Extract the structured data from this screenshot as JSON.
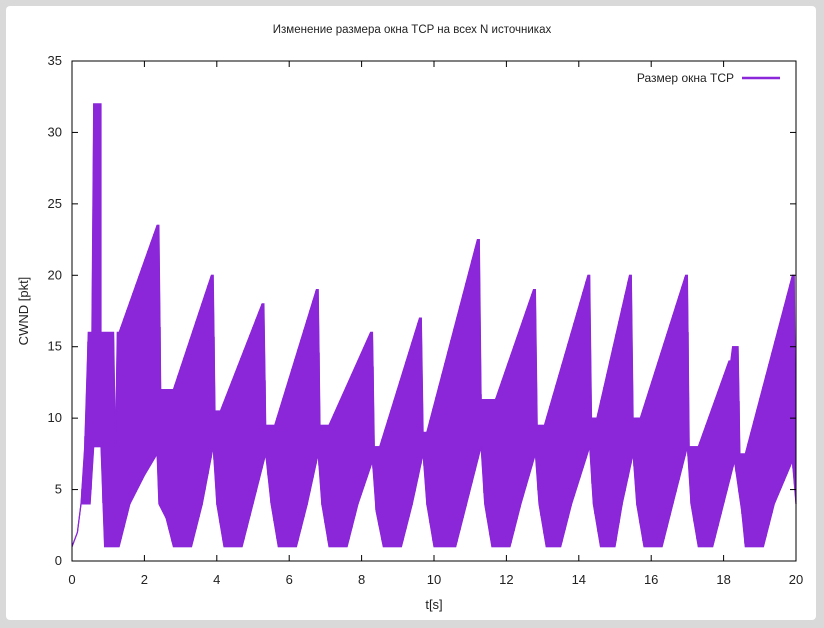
{
  "chart_data": {
    "type": "line",
    "title": "Изменение размера окна TCP на всех N источниках",
    "xlabel": "t[s]",
    "ylabel": "CWND [pkt]",
    "xlim": [
      0,
      20
    ],
    "ylim": [
      0,
      35
    ],
    "xticks": [
      0,
      2,
      4,
      6,
      8,
      10,
      12,
      14,
      16,
      18,
      20
    ],
    "yticks": [
      0,
      5,
      10,
      15,
      20,
      25,
      30,
      35
    ],
    "grid": false,
    "legend_position": "top-right",
    "color": "#8b26d9",
    "series": [
      {
        "name": "Размер окна TCP",
        "style": "filled oscillating envelope (dense sawtooth between lower and upper traces)",
        "upper": [
          [
            0,
            1
          ],
          [
            0.15,
            2
          ],
          [
            0.25,
            4
          ],
          [
            0.35,
            8
          ],
          [
            0.45,
            16
          ],
          [
            0.55,
            16
          ],
          [
            0.6,
            32
          ],
          [
            0.8,
            32
          ],
          [
            0.8,
            16
          ],
          [
            1.15,
            16
          ],
          [
            1.2,
            8
          ],
          [
            1.25,
            16
          ],
          [
            1.3,
            16
          ],
          [
            2.35,
            23.5
          ],
          [
            2.4,
            23.5
          ],
          [
            2.45,
            12
          ],
          [
            2.8,
            12
          ],
          [
            3.85,
            20
          ],
          [
            3.9,
            20
          ],
          [
            3.95,
            10.5
          ],
          [
            4.1,
            10.5
          ],
          [
            5.25,
            18
          ],
          [
            5.3,
            18
          ],
          [
            5.35,
            9.5
          ],
          [
            5.6,
            9.5
          ],
          [
            6.75,
            19
          ],
          [
            6.8,
            19
          ],
          [
            6.85,
            9.5
          ],
          [
            7.1,
            9.5
          ],
          [
            8.25,
            16
          ],
          [
            8.3,
            16
          ],
          [
            8.35,
            8
          ],
          [
            8.5,
            8
          ],
          [
            9.6,
            17
          ],
          [
            9.65,
            17
          ],
          [
            9.7,
            9
          ],
          [
            9.8,
            9
          ],
          [
            11.2,
            22.5
          ],
          [
            11.25,
            22.5
          ],
          [
            11.3,
            11.3
          ],
          [
            11.7,
            11.3
          ],
          [
            12.75,
            19
          ],
          [
            12.8,
            19
          ],
          [
            12.85,
            9.5
          ],
          [
            13.05,
            9.5
          ],
          [
            14.25,
            20
          ],
          [
            14.3,
            20
          ],
          [
            14.35,
            10
          ],
          [
            14.5,
            10
          ],
          [
            15.4,
            20
          ],
          [
            15.45,
            20
          ],
          [
            15.5,
            10
          ],
          [
            15.7,
            10
          ],
          [
            16.95,
            20
          ],
          [
            17.0,
            20
          ],
          [
            17.05,
            8
          ],
          [
            17.3,
            8
          ],
          [
            18.15,
            14
          ],
          [
            18.2,
            14
          ],
          [
            18.25,
            15
          ],
          [
            18.4,
            15
          ],
          [
            18.45,
            7.5
          ],
          [
            18.6,
            7.5
          ],
          [
            19.9,
            20
          ],
          [
            19.95,
            20
          ],
          [
            20,
            4
          ]
        ],
        "lower": [
          [
            0,
            1
          ],
          [
            0.15,
            2
          ],
          [
            0.25,
            4
          ],
          [
            0.35,
            4
          ],
          [
            0.5,
            4
          ],
          [
            0.6,
            8
          ],
          [
            0.8,
            8
          ],
          [
            0.9,
            1
          ],
          [
            1.3,
            1
          ],
          [
            1.6,
            4
          ],
          [
            2.0,
            6
          ],
          [
            2.35,
            7.5
          ],
          [
            2.4,
            4
          ],
          [
            2.6,
            3
          ],
          [
            2.8,
            1
          ],
          [
            3.3,
            1
          ],
          [
            3.6,
            4
          ],
          [
            3.9,
            8
          ],
          [
            4.0,
            4
          ],
          [
            4.2,
            1
          ],
          [
            4.7,
            1
          ],
          [
            5.0,
            4
          ],
          [
            5.35,
            7.5
          ],
          [
            5.5,
            4
          ],
          [
            5.7,
            1
          ],
          [
            6.2,
            1
          ],
          [
            6.5,
            4
          ],
          [
            6.8,
            7.5
          ],
          [
            6.9,
            4
          ],
          [
            7.1,
            1
          ],
          [
            7.6,
            1
          ],
          [
            7.9,
            4
          ],
          [
            8.3,
            7
          ],
          [
            8.4,
            3.5
          ],
          [
            8.6,
            1
          ],
          [
            9.1,
            1
          ],
          [
            9.4,
            4
          ],
          [
            9.7,
            7.5
          ],
          [
            9.8,
            4
          ],
          [
            10.0,
            1
          ],
          [
            10.6,
            1
          ],
          [
            10.9,
            4
          ],
          [
            11.3,
            8
          ],
          [
            11.4,
            4
          ],
          [
            11.6,
            1
          ],
          [
            12.1,
            1
          ],
          [
            12.4,
            4
          ],
          [
            12.8,
            7.5
          ],
          [
            12.9,
            4
          ],
          [
            13.1,
            1
          ],
          [
            13.5,
            1
          ],
          [
            13.8,
            4
          ],
          [
            14.3,
            8
          ],
          [
            14.4,
            4
          ],
          [
            14.6,
            1
          ],
          [
            15.0,
            1
          ],
          [
            15.2,
            4
          ],
          [
            15.5,
            7.5
          ],
          [
            15.6,
            4
          ],
          [
            15.8,
            1
          ],
          [
            16.3,
            1
          ],
          [
            16.6,
            4
          ],
          [
            17.0,
            8
          ],
          [
            17.1,
            4
          ],
          [
            17.3,
            1
          ],
          [
            17.7,
            1
          ],
          [
            18.0,
            4
          ],
          [
            18.3,
            7
          ],
          [
            18.5,
            3.5
          ],
          [
            18.6,
            1
          ],
          [
            19.1,
            1
          ],
          [
            19.4,
            4
          ],
          [
            19.9,
            7
          ],
          [
            20,
            4
          ]
        ]
      }
    ]
  }
}
